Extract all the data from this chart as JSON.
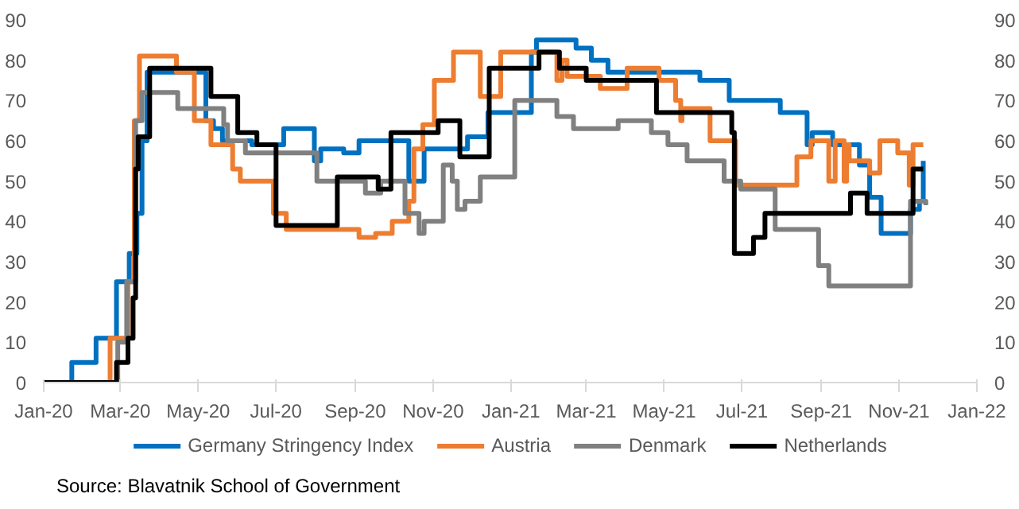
{
  "chart_data": {
    "type": "step",
    "xlim": [
      "2020-01-01",
      "2022-01-01"
    ],
    "xticks": [
      {
        "value": "2020-01-01",
        "label": "Jan-20"
      },
      {
        "value": "2020-03-01",
        "label": "Mar-20"
      },
      {
        "value": "2020-05-01",
        "label": "May-20"
      },
      {
        "value": "2020-07-01",
        "label": "Jul-20"
      },
      {
        "value": "2020-09-01",
        "label": "Sep-20"
      },
      {
        "value": "2020-11-01",
        "label": "Nov-20"
      },
      {
        "value": "2021-01-01",
        "label": "Jan-21"
      },
      {
        "value": "2021-03-01",
        "label": "Mar-21"
      },
      {
        "value": "2021-05-01",
        "label": "May-21"
      },
      {
        "value": "2021-07-01",
        "label": "Jul-21"
      },
      {
        "value": "2021-09-01",
        "label": "Sep-21"
      },
      {
        "value": "2021-11-01",
        "label": "Nov-21"
      },
      {
        "value": "2022-01-01",
        "label": "Jan-22"
      }
    ],
    "ylim": [
      0,
      90
    ],
    "yticks": [
      0,
      10,
      20,
      30,
      40,
      50,
      60,
      70,
      80,
      90
    ],
    "y2lim": [
      0,
      90
    ],
    "y2ticks": [
      0,
      10,
      20,
      30,
      40,
      50,
      60,
      70,
      80,
      90
    ],
    "grid": false,
    "legend": "bottom",
    "line_style": "solid",
    "annotations": [
      "Source:  Blavatnik School of Government"
    ],
    "series": [
      {
        "name": "Germany Stringency Index",
        "color": "#0070c0",
        "x": [
          "2020-01-01",
          "2020-01-23",
          "2020-02-11",
          "2020-02-27",
          "2020-03-08",
          "2020-03-14",
          "2020-03-18",
          "2020-03-22",
          "2020-05-07",
          "2020-05-13",
          "2020-05-20",
          "2020-06-12",
          "2020-07-07",
          "2020-07-31",
          "2020-08-05",
          "2020-08-23",
          "2020-09-04",
          "2020-10-13",
          "2020-10-25",
          "2020-11-28",
          "2020-12-14",
          "2021-01-17",
          "2021-01-21",
          "2021-02-21",
          "2021-03-05",
          "2021-03-18",
          "2021-05-29",
          "2021-06-21",
          "2021-07-31",
          "2021-08-21",
          "2021-08-25",
          "2021-09-10",
          "2021-10-01",
          "2021-10-09",
          "2021-10-18",
          "2021-11-10",
          "2021-11-17",
          "2021-11-20"
        ],
        "values": [
          0,
          5,
          11,
          25,
          32,
          42,
          60,
          77,
          65,
          63,
          60,
          59,
          63,
          55,
          58,
          57,
          60,
          50,
          58,
          61,
          67,
          82,
          85,
          83,
          80,
          77,
          75,
          70,
          67,
          59,
          62,
          59,
          54,
          46,
          37,
          43,
          45,
          55
        ]
      },
      {
        "name": "Austria",
        "color": "#ed7d31",
        "x": [
          "2020-01-01",
          "2020-02-22",
          "2020-03-07",
          "2020-03-12",
          "2020-03-16",
          "2020-04-14",
          "2020-04-28",
          "2020-05-11",
          "2020-05-28",
          "2020-06-03",
          "2020-06-29",
          "2020-07-09",
          "2020-09-04",
          "2020-09-17",
          "2020-09-30",
          "2020-10-13",
          "2020-10-17",
          "2020-10-24",
          "2020-11-02",
          "2020-11-17",
          "2020-12-08",
          "2020-12-24",
          "2021-02-06",
          "2021-02-10",
          "2021-02-14",
          "2021-03-12",
          "2021-04-02",
          "2021-04-27",
          "2021-05-10",
          "2021-05-14",
          "2021-05-15",
          "2021-06-06",
          "2021-06-26",
          "2021-08-13",
          "2021-08-24",
          "2021-09-07",
          "2021-09-12",
          "2021-09-19",
          "2021-09-21",
          "2021-09-23",
          "2021-10-09",
          "2021-10-17",
          "2021-10-31",
          "2021-11-09",
          "2021-11-12",
          "2021-11-20"
        ],
        "values": [
          0,
          11,
          25,
          65,
          81,
          77,
          65,
          59,
          53,
          50,
          42,
          38,
          36,
          37,
          40,
          45,
          58,
          64,
          75,
          82,
          71,
          82,
          75,
          80,
          76,
          73,
          78,
          75,
          70,
          65,
          68,
          60,
          49,
          56,
          60,
          50,
          60,
          50,
          59,
          55,
          52,
          60,
          57,
          49,
          59,
          59
        ]
      },
      {
        "name": "Denmark",
        "color": "#808080",
        "x": [
          "2020-01-01",
          "2020-02-28",
          "2020-03-06",
          "2020-03-13",
          "2020-03-18",
          "2020-04-15",
          "2020-05-21",
          "2020-05-24",
          "2020-06-07",
          "2020-08-02",
          "2020-09-09",
          "2020-09-21",
          "2020-10-10",
          "2020-10-21",
          "2020-10-25",
          "2020-11-09",
          "2020-11-16",
          "2020-11-20",
          "2020-11-26",
          "2020-12-08",
          "2021-01-04",
          "2021-02-06",
          "2021-02-19",
          "2021-03-26",
          "2021-04-21",
          "2021-05-04",
          "2021-05-19",
          "2021-06-17",
          "2021-06-30",
          "2021-07-27",
          "2021-08-30",
          "2021-09-07",
          "2021-11-10",
          "2021-11-22"
        ],
        "values": [
          0,
          10,
          25,
          65,
          72,
          68,
          64,
          60,
          57,
          50,
          47,
          50,
          42,
          37,
          40,
          54,
          50,
          43,
          45,
          51,
          70,
          66,
          63,
          65,
          62,
          59,
          55,
          50,
          48,
          38,
          29,
          24,
          45,
          44
        ]
      },
      {
        "name": "Netherlands",
        "color": "#000000",
        "x": [
          "2020-01-01",
          "2020-02-27",
          "2020-03-07",
          "2020-03-11",
          "2020-03-13",
          "2020-03-15",
          "2020-03-24",
          "2020-05-11",
          "2020-06-01",
          "2020-06-16",
          "2020-07-01",
          "2020-08-18",
          "2020-09-19",
          "2020-09-29",
          "2020-11-05",
          "2020-11-22",
          "2020-12-15",
          "2021-01-23",
          "2021-02-08",
          "2021-03-01",
          "2021-04-25",
          "2021-06-23",
          "2021-06-25",
          "2021-07-10",
          "2021-07-19",
          "2021-09-24",
          "2021-10-07",
          "2021-11-12",
          "2021-11-20"
        ],
        "values": [
          0,
          5,
          11,
          21,
          53,
          61,
          78,
          71,
          62,
          59,
          39,
          51,
          48,
          62,
          65,
          56,
          78,
          82,
          78,
          75,
          67,
          62,
          32,
          36,
          42,
          47,
          42,
          53,
          53
        ]
      }
    ]
  }
}
